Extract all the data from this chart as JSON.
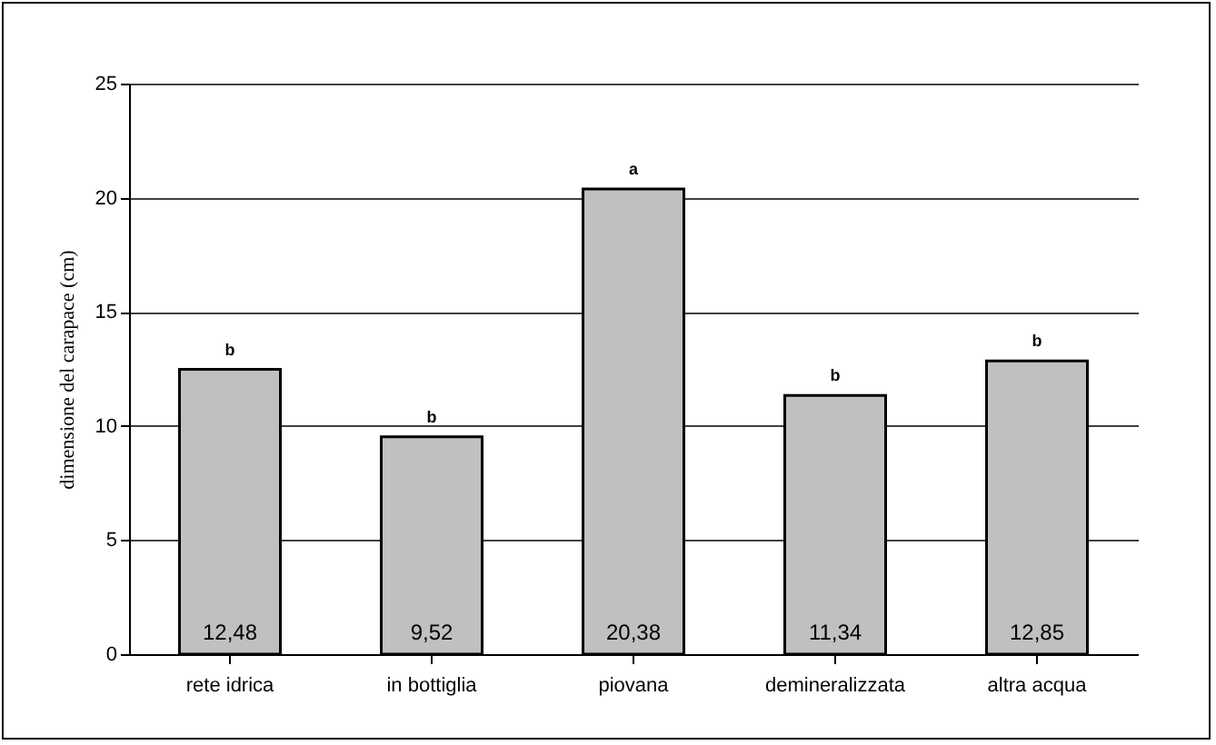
{
  "chart_data": {
    "type": "bar",
    "ylabel": "dimensione del carapace (cm)",
    "categories": [
      "rete idrica",
      "in bottiglia",
      "piovana",
      "demineralizzata",
      "altra acqua"
    ],
    "values": [
      12.48,
      9.52,
      20.38,
      11.34,
      12.85
    ],
    "value_labels": [
      "12,48",
      "9,52",
      "20,38",
      "11,34",
      "12,85"
    ],
    "color": "#c0c0c0",
    "ylim": [
      0,
      25
    ],
    "yticks": [
      0,
      5,
      10,
      15,
      20,
      25
    ],
    "grid": "y",
    "annotations": [
      {
        "text": "b",
        "x": "rete idrica",
        "y": 12.48
      },
      {
        "text": "b",
        "x": "in bottiglia",
        "y": 9.52
      },
      {
        "text": "a",
        "x": "piovana",
        "y": 20.38
      },
      {
        "text": "b",
        "x": "demineralizzata",
        "y": 11.34
      },
      {
        "text": "b",
        "x": "altra acqua",
        "y": 12.85
      }
    ]
  }
}
